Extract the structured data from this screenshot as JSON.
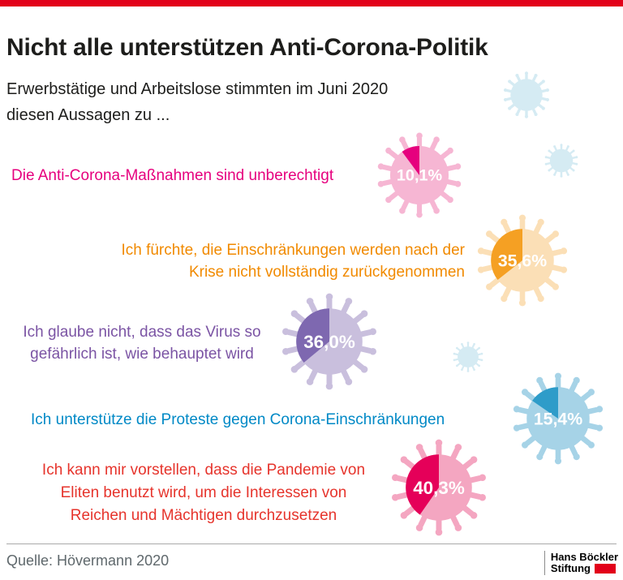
{
  "palette": {
    "accent_red": "#e2001a",
    "decor_virus": "#d5ebf3",
    "source_text_color": "#5f686c"
  },
  "footer": {
    "source": "Quelle: Hövermann 2020",
    "logo_line1": "Hans Böckler",
    "logo_line2": "Stiftung"
  },
  "chart_data": {
    "type": "pie",
    "title": "Nicht alle unterstützen Anti-Corona-Politik",
    "subtitle": "Erwerbstätige und Arbeitslose stimmten im Juni 2020 diesen Aussagen zu ...",
    "subtitle_lines": [
      "Erwerbstätige und Arbeitslose stimmten im Juni 2020",
      "diesen Aussagen zu ..."
    ],
    "unit": "%",
    "legend": "none",
    "items": [
      {
        "lines": [
          "Die Anti-Corona-Maßnahmen sind unberechtigt"
        ],
        "value": 10.1,
        "value_label": "10,1%",
        "text_color": "#e6007e",
        "color": "#e6007e",
        "light_color": "#f6b6d3"
      },
      {
        "lines": [
          "Ich fürchte, die Einschränkungen werden nach der",
          "Krise nicht vollständig zurückgenommen"
        ],
        "value": 35.6,
        "value_label": "35,6%",
        "text_color": "#f18a00",
        "color": "#f5a023",
        "light_color": "#fbdfb6"
      },
      {
        "lines": [
          "Ich glaube nicht, dass das Virus so",
          "gefährlich ist, wie behauptet wird"
        ],
        "value": 36.0,
        "value_label": "36,0%",
        "text_color": "#7b54a4",
        "color": "#7e68b0",
        "light_color": "#c9bfdd"
      },
      {
        "lines": [
          "Ich unterstütze die Proteste gegen Corona-Einschränkungen"
        ],
        "value": 15.4,
        "value_label": "15,4%",
        "text_color": "#0089c6",
        "color": "#2e9cc9",
        "light_color": "#a6d3e7"
      },
      {
        "lines": [
          "Ich kann mir vorstellen, dass die Pandemie von",
          "Eliten benutzt wird, um die Interessen von",
          "Reichen und Mächtigen durchzusetzen"
        ],
        "value": 40.3,
        "value_label": "40,3%",
        "text_color": "#e6342c",
        "color": "#e50059",
        "light_color": "#f4a6c1"
      }
    ],
    "source": "Quelle: Hövermann 2020"
  }
}
